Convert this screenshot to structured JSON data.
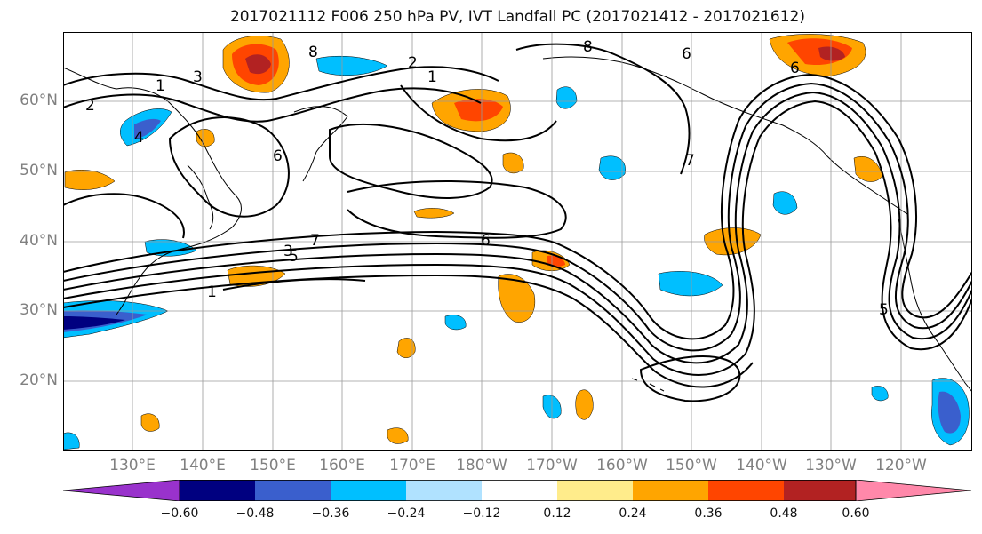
{
  "title": "2017021112 F006 250 hPa PV, IVT Landfall PC (2017021412 - 2017021612)",
  "map": {
    "lat_labels": [
      "60°N",
      "50°N",
      "40°N",
      "30°N",
      "20°N"
    ],
    "lon_labels": [
      "130°E",
      "140°E",
      "150°E",
      "160°E",
      "170°E",
      "180°W",
      "170°W",
      "160°W",
      "150°W",
      "140°W",
      "130°W",
      "120°W"
    ],
    "contour_labels": [
      "1",
      "2",
      "3",
      "4",
      "5",
      "6",
      "7",
      "8"
    ]
  },
  "colorbar": {
    "ticks": [
      "−0.60",
      "−0.48",
      "−0.36",
      "−0.24",
      "−0.12",
      "0.12",
      "0.24",
      "0.36",
      "0.48",
      "0.60"
    ],
    "colors": {
      "under": "#9932cc",
      "levels": [
        "#000080",
        "#3a5fcd",
        "#00bfff",
        "#b0e2ff",
        "#ffffff",
        "#ffec8b",
        "#ffa500",
        "#ff4500",
        "#b22222"
      ],
      "over": "#ff88aa"
    }
  }
}
